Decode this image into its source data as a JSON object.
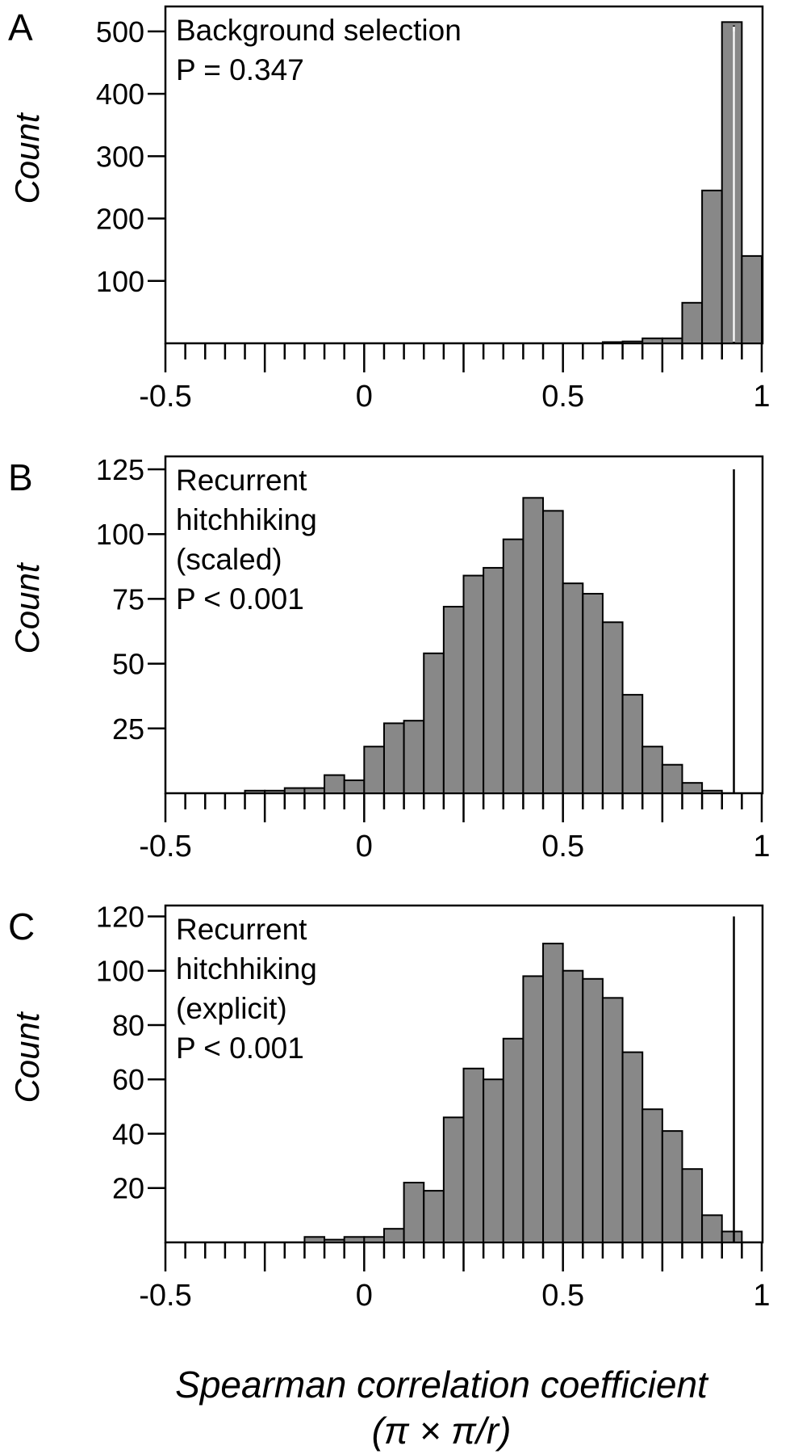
{
  "chart_data": [
    {
      "type": "bar",
      "panel": "A",
      "inset_lines": [
        "Background selection",
        "P = 0.347"
      ],
      "ylabel": "Count",
      "xlim": [
        -0.5,
        1
      ],
      "ylim": [
        0,
        540
      ],
      "xticks": [
        "-0.5",
        "0",
        "0.5",
        "1"
      ],
      "yticks": [
        100,
        200,
        300,
        400,
        500
      ],
      "bin_width": 0.05,
      "bin_starts": [
        0.6,
        0.65,
        0.7,
        0.75,
        0.8,
        0.85,
        0.9,
        0.95
      ],
      "values": [
        2,
        3,
        8,
        8,
        65,
        245,
        515,
        140
      ],
      "observed": 0.93
    },
    {
      "type": "bar",
      "panel": "B",
      "inset_lines": [
        "Recurrent",
        "hitchhiking",
        "(scaled)",
        "P < 0.001"
      ],
      "ylabel": "Count",
      "xlim": [
        -0.5,
        1
      ],
      "ylim": [
        0,
        130
      ],
      "xticks": [
        "-0.5",
        "0",
        "0.5",
        "1"
      ],
      "yticks": [
        25,
        50,
        75,
        100,
        125
      ],
      "bin_width": 0.05,
      "bin_starts": [
        -0.3,
        -0.25,
        -0.2,
        -0.15,
        -0.1,
        -0.05,
        0,
        0.05,
        0.1,
        0.15,
        0.2,
        0.25,
        0.3,
        0.35,
        0.4,
        0.45,
        0.5,
        0.55,
        0.6,
        0.65,
        0.7,
        0.75,
        0.8,
        0.85
      ],
      "values": [
        1,
        1,
        2,
        2,
        7,
        5,
        18,
        27,
        28,
        54,
        72,
        84,
        87,
        98,
        114,
        109,
        81,
        77,
        66,
        38,
        18,
        11,
        4,
        1
      ],
      "observed": 0.93
    },
    {
      "type": "bar",
      "panel": "C",
      "inset_lines": [
        "Recurrent",
        "hitchhiking",
        "(explicit)",
        "P < 0.001"
      ],
      "ylabel": "Count",
      "xlim": [
        -0.5,
        1
      ],
      "ylim": [
        0,
        124
      ],
      "xticks": [
        "-0.5",
        "0",
        "0.5",
        "1"
      ],
      "yticks": [
        20,
        40,
        60,
        80,
        100,
        120
      ],
      "bin_width": 0.05,
      "bin_starts": [
        -0.15,
        -0.1,
        -0.05,
        0,
        0.05,
        0.1,
        0.15,
        0.2,
        0.25,
        0.3,
        0.35,
        0.4,
        0.45,
        0.5,
        0.55,
        0.6,
        0.65,
        0.7,
        0.75,
        0.8,
        0.85,
        0.9
      ],
      "values": [
        2,
        1,
        2,
        2,
        5,
        22,
        19,
        46,
        64,
        60,
        75,
        98,
        110,
        100,
        97,
        90,
        70,
        49,
        41,
        27,
        10,
        4
      ],
      "observed": 0.93
    }
  ],
  "xlabel_line1": "Spearman correlation coefficient",
  "xlabel_line2": "(π × π/r)"
}
